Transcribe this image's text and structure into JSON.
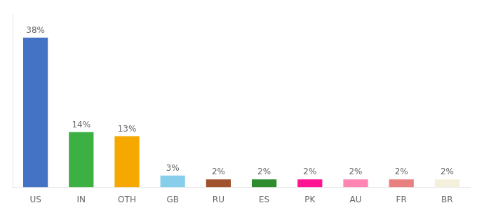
{
  "chart_data": {
    "type": "bar",
    "categories": [
      "US",
      "IN",
      "OTH",
      "GB",
      "RU",
      "ES",
      "PK",
      "AU",
      "FR",
      "BR"
    ],
    "values": [
      38,
      14,
      13,
      3,
      2,
      2,
      2,
      2,
      2,
      2
    ],
    "value_labels": [
      "38%",
      "14%",
      "13%",
      "3%",
      "2%",
      "2%",
      "2%",
      "2%",
      "2%",
      "2%"
    ],
    "colors": [
      "#4472c4",
      "#3cb043",
      "#f5a800",
      "#87ceeb",
      "#a0522d",
      "#2e8b2e",
      "#ff1493",
      "#ff85b3",
      "#e88080",
      "#f5f0dc"
    ],
    "ylim": [
      0,
      44
    ],
    "grid": false,
    "data_labels": true,
    "tick_labels": "x"
  }
}
